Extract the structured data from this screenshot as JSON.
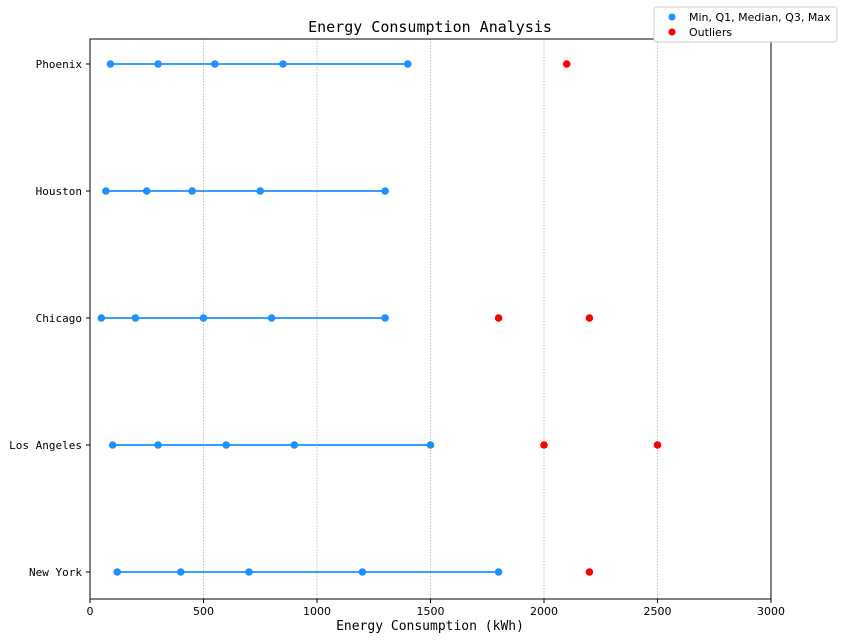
{
  "chart_data": {
    "type": "scatter",
    "title": "Energy Consumption Analysis",
    "xlabel": "Energy Consumption (kWh)",
    "ylabel": "",
    "xlim": [
      0,
      3000
    ],
    "xticks": [
      "0",
      "500",
      "1000",
      "1500",
      "2000",
      "2500",
      "3000"
    ],
    "categories": [
      "New York",
      "Los Angeles",
      "Chicago",
      "Houston",
      "Phoenix"
    ],
    "grid": "vertical dotted",
    "legend_position": "top-right",
    "series": [
      {
        "name": "Min, Q1, Median, Q3, Max",
        "color": "#1e90ff",
        "values": [
          {
            "city": "New York",
            "min": 120,
            "q1": 400,
            "median": 700,
            "q3": 1200,
            "max": 1800
          },
          {
            "city": "Los Angeles",
            "min": 100,
            "q1": 300,
            "median": 600,
            "q3": 900,
            "max": 1500
          },
          {
            "city": "Chicago",
            "min": 50,
            "q1": 200,
            "median": 500,
            "q3": 800,
            "max": 1300
          },
          {
            "city": "Houston",
            "min": 70,
            "q1": 250,
            "median": 450,
            "q3": 750,
            "max": 1300
          },
          {
            "city": "Phoenix",
            "min": 90,
            "q1": 300,
            "median": 550,
            "q3": 850,
            "max": 1400
          }
        ]
      },
      {
        "name": "Outliers",
        "color": "#ff0000",
        "values": [
          {
            "city": "New York",
            "points": [
              2200
            ]
          },
          {
            "city": "Los Angeles",
            "points": [
              2000,
              2500
            ]
          },
          {
            "city": "Chicago",
            "points": [
              1800,
              2200
            ]
          },
          {
            "city": "Houston",
            "points": []
          },
          {
            "city": "Phoenix",
            "points": [
              2100
            ]
          }
        ]
      }
    ]
  }
}
